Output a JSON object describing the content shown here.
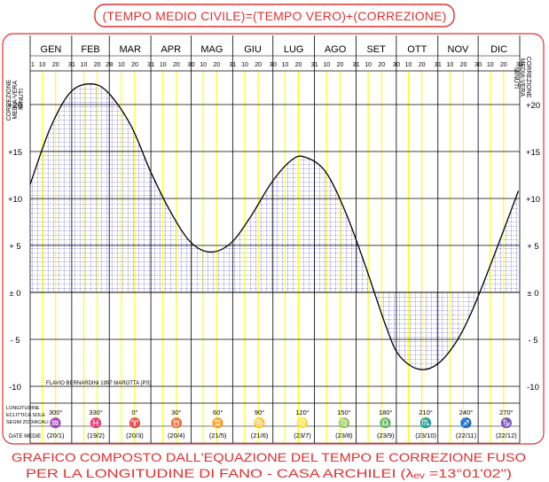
{
  "chart_data": {
    "type": "line",
    "title": "(TEMPO MEDIO CIVILE)=(TEMPO VERO)+(CORREZIONE)",
    "subtitle_line1": "GRAFICO COMPOSTO DALL'EQUAZIONE DEL TEMPO E CORREZIONE FUSO",
    "subtitle_line2": "PER LA LONGITUDINE DI FANO - CASA ARCHILEI (λₑᵥ =13°01'02\")",
    "credit": "FLAVIO BERNARDINI 1997  MAROTTA (PS)",
    "ylabel_left": [
      "CORREZIONE",
      "MEDIA-VERA",
      "MINUTI"
    ],
    "ylabel_right": [
      "CORREZIONE",
      "MEDIA-VERA",
      "MINUTI"
    ],
    "ylim": [
      -11,
      23
    ],
    "ytick_labels": [
      "+20",
      "+15",
      "+10",
      "+ 5",
      "± 0",
      "- 5",
      "-10"
    ],
    "ytick_values": [
      20,
      15,
      10,
      5,
      0,
      -5,
      -10
    ],
    "months": [
      "GEN",
      "FEB",
      "MAR",
      "APR",
      "MAG",
      "GIU",
      "LUG",
      "AGO",
      "SET",
      "OTT",
      "NOV",
      "DIC"
    ],
    "month_day_counts": [
      31,
      28,
      31,
      30,
      31,
      30,
      31,
      31,
      30,
      31,
      30,
      31
    ],
    "day_label_1": "1",
    "day_label_10": "10",
    "day_label_20": "20",
    "month_end_labels": [
      "31",
      "28",
      "31",
      "30",
      "31",
      "30",
      "31",
      "31",
      "30",
      "31",
      "30",
      "31"
    ],
    "bottom_row_labels": [
      "LONGITUDINE",
      "ECLITTICA SOLE",
      "SEGNI ZODIACALI"
    ],
    "date_label": "DATE  MEDIE",
    "zodiac_longitudes": [
      "300°",
      "330°",
      "0°",
      "30°",
      "60°",
      "90°",
      "120°",
      "150°",
      "180°",
      "210°",
      "240°",
      "270°"
    ],
    "zodiac_symbols": [
      "♒",
      "♓",
      "♈",
      "♉",
      "♊",
      "♋",
      "♌",
      "♍",
      "♎",
      "♏",
      "♐",
      "♑"
    ],
    "zodiac_dates": [
      "(20/1)",
      "(19/2)",
      "(20/3)",
      "(20/4)",
      "(21/5)",
      "(21/6)",
      "(23/7)",
      "(23/8)",
      "(23/9)",
      "(23/10)",
      "(22/11)",
      "(22/12)"
    ],
    "series": [
      {
        "x_day_of_year": [
          0,
          15,
          30,
          45,
          58,
          75,
          90,
          105,
          120,
          135,
          150,
          165,
          180,
          195,
          205,
          220,
          235,
          250,
          265,
          275,
          290,
          304,
          318,
          330,
          345,
          364
        ],
        "values": [
          11.5,
          17.5,
          21.3,
          22.2,
          21.3,
          17.8,
          12.8,
          8.5,
          5.3,
          4.3,
          5.3,
          8.2,
          11.7,
          14.1,
          14.4,
          12.9,
          8.6,
          2.8,
          -3.5,
          -6.7,
          -8.2,
          -7.6,
          -5.2,
          -1.8,
          3.6,
          10.8
        ]
      }
    ],
    "colors": {
      "frame": "#e03030",
      "grid_major": "#000000",
      "grid_yellow": "#ffff00",
      "hatch": "#3030c8",
      "curve": "#000000",
      "axis_text": "#000000"
    }
  }
}
